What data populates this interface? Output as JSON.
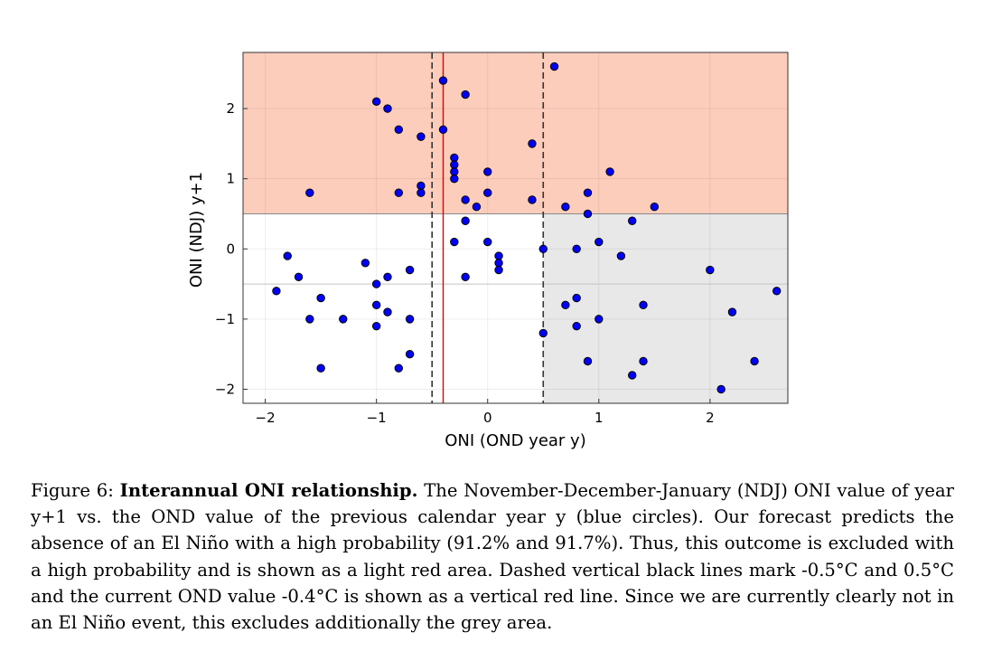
{
  "chart_data": {
    "type": "scatter",
    "xlabel": "ONI (OND year y)",
    "ylabel": "ONI (NDJ) y+1",
    "xlim": [
      -2.2,
      2.7
    ],
    "ylim": [
      -2.2,
      2.8
    ],
    "xticks": [
      -2,
      -1,
      0,
      1,
      2
    ],
    "yticks": [
      -2,
      -1,
      0,
      1,
      2
    ],
    "xtick_labels": [
      "−2",
      "−1",
      "0",
      "1",
      "2"
    ],
    "ytick_labels": [
      "−2",
      "−1",
      "0",
      "1",
      "2"
    ],
    "grid": true,
    "legend": "none",
    "regions": [
      {
        "name": "excluded-light-red",
        "x": [
          -2.2,
          2.7
        ],
        "y": [
          0.5,
          2.8
        ],
        "color": "#fdcdbc"
      },
      {
        "name": "excluded-grey",
        "x": [
          0.5,
          2.7
        ],
        "y": [
          -2.2,
          0.5
        ],
        "color": "#e8e8e8"
      }
    ],
    "hlines": [
      {
        "y": 0.5,
        "color": "#8a8a8a"
      },
      {
        "y": -0.5,
        "color": "#c4c4c4"
      }
    ],
    "vlines": [
      {
        "x": -0.5,
        "color": "#333333",
        "style": "dashed"
      },
      {
        "x": 0.5,
        "color": "#333333",
        "style": "dashed"
      },
      {
        "x": -0.4,
        "color": "#e00000",
        "style": "solid"
      }
    ],
    "marker_color": "#0000ff",
    "series": [
      {
        "x": [
          0.6,
          -0.4,
          -0.2,
          -1.0,
          -0.9,
          -0.8,
          -0.4,
          -0.6,
          0.4,
          -0.3,
          -0.3,
          -0.3,
          0.0,
          -0.3,
          1.1,
          -0.6,
          -1.6,
          -0.8,
          -0.6,
          0.0,
          0.9,
          -0.2,
          0.4,
          -0.1,
          0.7,
          1.5,
          0.9,
          -0.2,
          1.3,
          -0.3,
          0.0,
          1.0,
          0.5,
          0.8,
          0.1,
          1.2,
          0.1,
          0.1,
          -1.8,
          -1.1,
          -0.7,
          2.0,
          -1.7,
          -0.9,
          -0.2,
          -1.0,
          -1.9,
          2.6,
          -1.5,
          0.8,
          -1.0,
          0.7,
          1.4,
          -0.9,
          2.2,
          -1.6,
          -1.3,
          -0.7,
          1.0,
          -1.0,
          0.8,
          0.5,
          -0.7,
          0.9,
          1.4,
          2.4,
          -1.5,
          -0.8,
          1.3,
          2.1
        ],
        "y": [
          2.6,
          2.4,
          2.2,
          2.1,
          2.0,
          1.7,
          1.7,
          1.6,
          1.5,
          1.3,
          1.2,
          1.1,
          1.1,
          1.0,
          1.1,
          0.9,
          0.8,
          0.8,
          0.8,
          0.8,
          0.8,
          0.7,
          0.7,
          0.6,
          0.6,
          0.6,
          0.5,
          0.4,
          0.4,
          0.1,
          0.1,
          0.1,
          0.0,
          0.0,
          -0.1,
          -0.1,
          -0.2,
          -0.3,
          -0.1,
          -0.2,
          -0.3,
          -0.3,
          -0.4,
          -0.4,
          -0.4,
          -0.5,
          -0.6,
          -0.6,
          -0.7,
          -0.7,
          -0.8,
          -0.8,
          -0.8,
          -0.9,
          -0.9,
          -1.0,
          -1.0,
          -1.0,
          -1.0,
          -1.1,
          -1.1,
          -1.2,
          -1.5,
          -1.6,
          -1.6,
          -1.6,
          -1.7,
          -1.7,
          -1.8,
          -2.0
        ]
      }
    ]
  },
  "caption": {
    "label": "Figure 6:",
    "title": "Interannual ONI relationship.",
    "body": "The November-December-January (NDJ) ONI value of year y+1 vs. the OND value of the previous calendar year y (blue circles). Our forecast predicts the absence of an El Niño with a high probability (91.2% and 91.7%). Thus, this outcome is excluded with a high probability and is shown as a light red area. Dashed vertical black lines mark -0.5°C and 0.5°C and the current OND value -0.4°C is shown as a vertical red line. Since we are currently clearly not in an El Niño event, this excludes additionally the grey area."
  }
}
